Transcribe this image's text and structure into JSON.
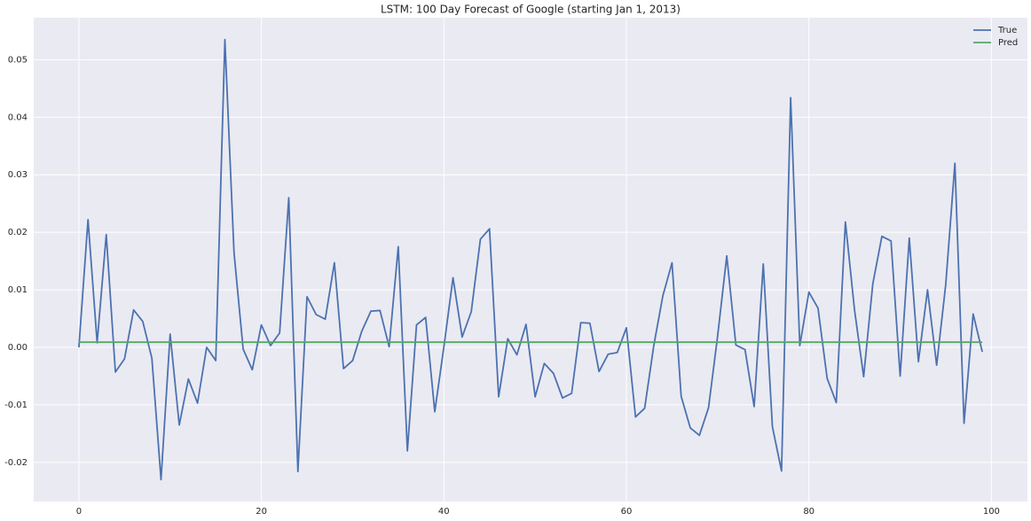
{
  "chart_data": {
    "type": "line",
    "title": "LSTM: 100 Day Forecast of Google (starting Jan 1, 2013)",
    "x": [
      0,
      1,
      2,
      3,
      4,
      5,
      6,
      7,
      8,
      9,
      10,
      11,
      12,
      13,
      14,
      15,
      16,
      17,
      18,
      19,
      20,
      21,
      22,
      23,
      24,
      25,
      26,
      27,
      28,
      29,
      30,
      31,
      32,
      33,
      34,
      35,
      36,
      37,
      38,
      39,
      40,
      41,
      42,
      43,
      44,
      45,
      46,
      47,
      48,
      49,
      50,
      51,
      52,
      53,
      54,
      55,
      56,
      57,
      58,
      59,
      60,
      61,
      62,
      63,
      64,
      65,
      66,
      67,
      68,
      69,
      70,
      71,
      72,
      73,
      74,
      75,
      76,
      77,
      78,
      79,
      80,
      81,
      82,
      83,
      84,
      85,
      86,
      87,
      88,
      89,
      90,
      91,
      92,
      93,
      94,
      95,
      96,
      97,
      98,
      99
    ],
    "series": [
      {
        "name": "True",
        "color": "#4c72b0",
        "values": [
          0.0,
          0.0222,
          0.0008,
          0.0196,
          -0.0043,
          -0.002,
          0.0065,
          0.0045,
          -0.0019,
          -0.023,
          0.0023,
          -0.0135,
          -0.0055,
          -0.0097,
          0.0,
          -0.0023,
          0.0535,
          0.0165,
          -0.0003,
          -0.0039,
          0.0039,
          0.0003,
          0.0025,
          0.026,
          -0.0216,
          0.0088,
          0.0057,
          0.0049,
          0.0147,
          -0.0037,
          -0.0023,
          0.0028,
          0.0063,
          0.0064,
          0.0001,
          0.0175,
          -0.018,
          0.0039,
          0.0052,
          -0.0112,
          0.0001,
          0.0121,
          0.0018,
          0.0062,
          0.0188,
          0.0206,
          -0.0086,
          0.0015,
          -0.0013,
          0.004,
          -0.0086,
          -0.0028,
          -0.0045,
          -0.0088,
          -0.008,
          0.0043,
          0.0042,
          -0.0042,
          -0.0012,
          -0.0009,
          0.0034,
          -0.0121,
          -0.0106,
          0.0003,
          0.009,
          0.0147,
          -0.0085,
          -0.014,
          -0.0153,
          -0.0105,
          0.002,
          0.0159,
          0.0004,
          -0.0004,
          -0.0103,
          0.0145,
          -0.0138,
          -0.0215,
          0.0434,
          0.0003,
          0.0096,
          0.0068,
          -0.0054,
          -0.0096,
          0.0218,
          0.0065,
          -0.0051,
          0.011,
          0.0193,
          0.0185,
          -0.005,
          0.019,
          -0.0025,
          0.01,
          -0.0031,
          0.011,
          0.032,
          -0.0132,
          0.0058,
          -0.0008
        ]
      },
      {
        "name": "Pred",
        "color": "#55a868",
        "values": [
          0.0009,
          0.0009,
          0.0009,
          0.0009,
          0.0009,
          0.0009,
          0.0009,
          0.0009,
          0.0009,
          0.0009,
          0.0009,
          0.0009,
          0.0009,
          0.0009,
          0.0009,
          0.0009,
          0.0009,
          0.0009,
          0.0009,
          0.0009,
          0.0009,
          0.0009,
          0.0009,
          0.0009,
          0.0009,
          0.0009,
          0.0009,
          0.0009,
          0.0009,
          0.0009,
          0.0009,
          0.0009,
          0.0009,
          0.0009,
          0.0009,
          0.0009,
          0.0009,
          0.0009,
          0.0009,
          0.0009,
          0.0009,
          0.0009,
          0.0009,
          0.0009,
          0.0009,
          0.0009,
          0.0009,
          0.0009,
          0.0009,
          0.0009,
          0.0009,
          0.0009,
          0.0009,
          0.0009,
          0.0009,
          0.0009,
          0.0009,
          0.0009,
          0.0009,
          0.0009,
          0.0009,
          0.0009,
          0.0009,
          0.0009,
          0.0009,
          0.0009,
          0.0009,
          0.0009,
          0.0009,
          0.0009,
          0.0009,
          0.0009,
          0.0009,
          0.0009,
          0.0009,
          0.0009,
          0.0009,
          0.0009,
          0.0009,
          0.0009,
          0.0009,
          0.0009,
          0.0009,
          0.0009,
          0.0009,
          0.0009,
          0.0009,
          0.0009,
          0.0009,
          0.0009,
          0.0009,
          0.0009,
          0.0009,
          0.0009,
          0.0009,
          0.0009,
          0.0009,
          0.0009,
          0.0009,
          0.0009
        ]
      }
    ],
    "xlim": [
      -4.95,
      103.95
    ],
    "xticks": [
      0,
      20,
      40,
      60,
      80,
      100
    ],
    "ylim": [
      -0.0268,
      0.0573
    ],
    "yticks": [
      -0.02,
      -0.01,
      {
        "value": 0,
        "label": "0.00"
      },
      0.01,
      0.02,
      0.03,
      0.04,
      0.05
    ],
    "grid": true,
    "legend": "upper-right"
  }
}
